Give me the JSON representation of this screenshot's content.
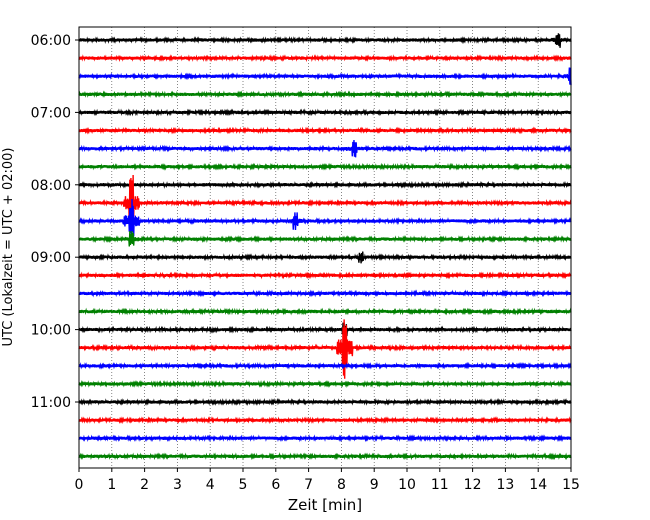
{
  "chart_data": {
    "type": "line",
    "subtype": "seismogram-helicorder",
    "xlabel": "Zeit  [min]",
    "ylabel": "UTC (Lokalzeit = UTC + 02:00)",
    "xlim": [
      0,
      15
    ],
    "x_ticks": [
      "0",
      "1",
      "2",
      "3",
      "4",
      "5",
      "6",
      "7",
      "8",
      "9",
      "10",
      "11",
      "12",
      "13",
      "14",
      "15"
    ],
    "y_tick_labels": [
      "06:00",
      "07:00",
      "08:00",
      "09:00",
      "10:00",
      "11:00"
    ],
    "grid": "vertical dotted at each minute",
    "legend": "none",
    "color_cycle": [
      "#000000",
      "#ff0000",
      "#0000ff",
      "#008000"
    ],
    "row_start_times": [
      "06:00",
      "06:15",
      "06:30",
      "06:45",
      "07:00",
      "07:15",
      "07:30",
      "07:45",
      "08:00",
      "08:15",
      "08:30",
      "08:45",
      "09:00",
      "09:15",
      "09:30",
      "09:45",
      "10:00",
      "10:15",
      "10:30",
      "10:45",
      "11:00",
      "11:15",
      "11:30",
      "11:45"
    ],
    "events": [
      {
        "row": "08:15",
        "minute": 1.6,
        "relative_amplitude": 1.6
      },
      {
        "row": "08:30",
        "minute": 1.6,
        "relative_amplitude": 1.3
      },
      {
        "row": "08:45",
        "minute": 1.6,
        "relative_amplitude": 0.5
      },
      {
        "row": "10:15",
        "minute": 8.1,
        "relative_amplitude": 1.9
      },
      {
        "row": "10:00",
        "minute": 8.1,
        "relative_amplitude": 0.4
      },
      {
        "row": "06:00",
        "minute": 14.6,
        "relative_amplitude": 0.5
      },
      {
        "row": "06:30",
        "minute": 15.0,
        "relative_amplitude": 0.5
      },
      {
        "row": "09:00",
        "minute": 8.6,
        "relative_amplitude": 0.35
      },
      {
        "row": "08:30",
        "minute": 6.6,
        "relative_amplitude": 0.5
      },
      {
        "row": "07:30",
        "minute": 8.4,
        "relative_amplitude": 0.5
      }
    ]
  }
}
